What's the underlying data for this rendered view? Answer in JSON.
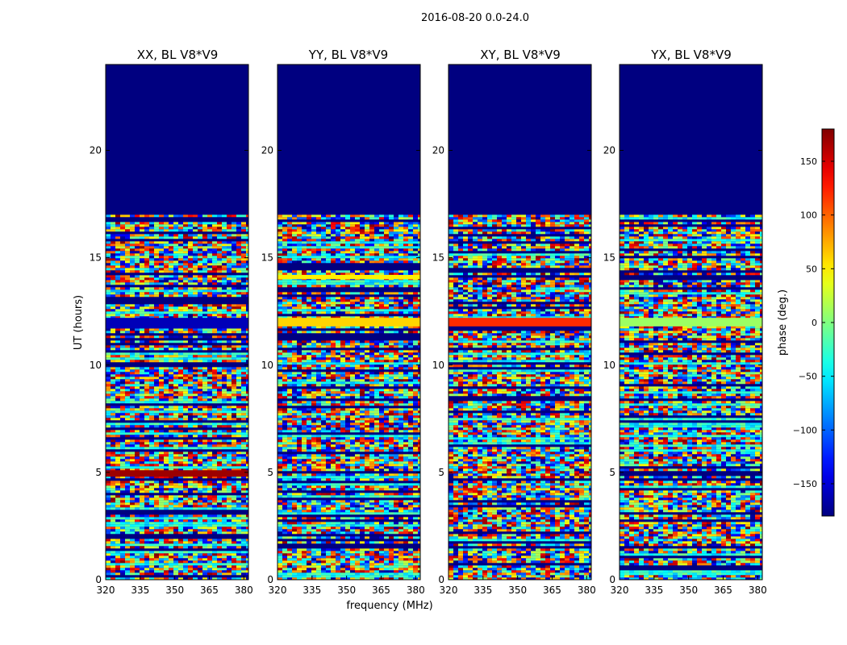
{
  "suptitle": "2016-08-20 0.0-24.0",
  "chart_data": [
    {
      "type": "heatmap",
      "title": "XX, BL V8*V9",
      "xlabel": "",
      "ylabel": "UT (hours)",
      "xlim": [
        320,
        382
      ],
      "ylim": [
        0,
        24
      ],
      "xticks": [
        320,
        335,
        350,
        365,
        380
      ],
      "yticks": [
        0,
        5,
        10,
        15,
        20
      ],
      "data_extent_hours": [
        0,
        17
      ],
      "value": "phase (deg.)",
      "notable_bands": [
        {
          "ut_start": 11.7,
          "ut_end": 12.2,
          "phase_deg": -160
        },
        {
          "ut_start": 4.8,
          "ut_end": 5.1,
          "phase_deg": 170
        }
      ]
    },
    {
      "type": "heatmap",
      "title": "YY, BL V8*V9",
      "xlabel": "frequency (MHz)",
      "ylabel": "",
      "xlim": [
        320,
        382
      ],
      "ylim": [
        0,
        24
      ],
      "xticks": [
        320,
        335,
        350,
        365,
        380
      ],
      "yticks": [
        0,
        5,
        10,
        15,
        20
      ],
      "data_extent_hours": [
        0,
        17
      ],
      "value": "phase (deg.)",
      "notable_bands": [
        {
          "ut_start": 11.8,
          "ut_end": 12.2,
          "phase_deg": 60
        },
        {
          "ut_start": 14.0,
          "ut_end": 14.2,
          "phase_deg": 50
        }
      ]
    },
    {
      "type": "heatmap",
      "title": "XY, BL V8*V9",
      "xlabel": "",
      "ylabel": "",
      "xlim": [
        320,
        382
      ],
      "ylim": [
        0,
        24
      ],
      "xticks": [
        320,
        335,
        350,
        365,
        380
      ],
      "yticks": [
        0,
        5,
        10,
        15,
        20
      ],
      "data_extent_hours": [
        0,
        17
      ],
      "value": "phase (deg.)",
      "notable_bands": [
        {
          "ut_start": 11.8,
          "ut_end": 12.2,
          "phase_deg": 120
        }
      ]
    },
    {
      "type": "heatmap",
      "title": "YX, BL V8*V9",
      "xlabel": "",
      "ylabel": "",
      "xlim": [
        320,
        382
      ],
      "ylim": [
        0,
        24
      ],
      "xticks": [
        320,
        335,
        350,
        365,
        380
      ],
      "yticks": [
        0,
        5,
        10,
        15,
        20
      ],
      "data_extent_hours": [
        0,
        17
      ],
      "value": "phase (deg.)",
      "notable_bands": [
        {
          "ut_start": 11.8,
          "ut_end": 12.2,
          "phase_deg": 10
        }
      ]
    }
  ],
  "colorbar": {
    "label": "phase (deg.)",
    "range": [
      -180,
      180
    ],
    "ticks": [
      150,
      100,
      50,
      0,
      -50,
      -100,
      -150
    ],
    "tick_labels": [
      "150",
      "100",
      "50",
      "0",
      "−50",
      "−100",
      "−150"
    ],
    "colormap": "jet"
  }
}
